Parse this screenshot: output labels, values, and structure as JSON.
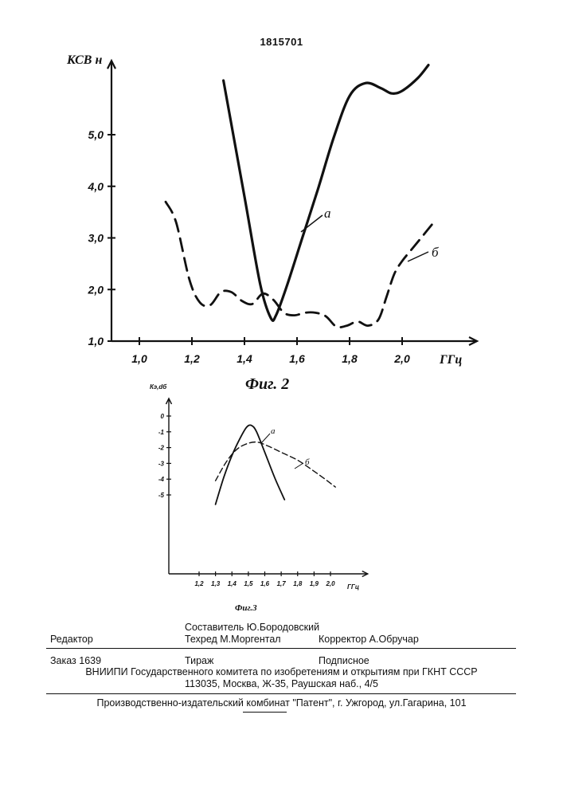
{
  "patent_number": "1815701",
  "chart_data": [
    {
      "type": "line",
      "caption": "Фиг. 2",
      "ylabel": "КСВ н",
      "xlabel": "ГГц",
      "xlim": [
        0.92,
        2.2
      ],
      "ylim": [
        1.0,
        6.0
      ],
      "x_ticks": [
        "1,0",
        "1,2",
        "1,4",
        "1,6",
        "1,8",
        "2,0"
      ],
      "y_ticks": [
        "1,0",
        "2,0",
        "3,0",
        "4,0",
        "5,0"
      ],
      "series": [
        {
          "name": "а",
          "style": "solid",
          "points": [
            [
              1.32,
              6.05
            ],
            [
              1.4,
              3.8
            ],
            [
              1.46,
              2.1
            ],
            [
              1.5,
              1.45
            ],
            [
              1.52,
              1.5
            ],
            [
              1.56,
              2.05
            ],
            [
              1.62,
              3.0
            ],
            [
              1.68,
              3.95
            ],
            [
              1.74,
              4.95
            ],
            [
              1.8,
              5.75
            ],
            [
              1.86,
              6.0
            ],
            [
              1.92,
              5.9
            ],
            [
              1.96,
              5.8
            ],
            [
              2.0,
              5.85
            ],
            [
              2.06,
              6.1
            ],
            [
              2.1,
              6.35
            ]
          ]
        },
        {
          "name": "б",
          "style": "dashed",
          "points": [
            [
              1.1,
              3.7
            ],
            [
              1.14,
              3.3
            ],
            [
              1.19,
              2.2
            ],
            [
              1.23,
              1.75
            ],
            [
              1.27,
              1.7
            ],
            [
              1.31,
              1.95
            ],
            [
              1.35,
              1.95
            ],
            [
              1.39,
              1.78
            ],
            [
              1.43,
              1.72
            ],
            [
              1.47,
              1.92
            ],
            [
              1.51,
              1.8
            ],
            [
              1.55,
              1.55
            ],
            [
              1.59,
              1.5
            ],
            [
              1.63,
              1.55
            ],
            [
              1.67,
              1.55
            ],
            [
              1.71,
              1.48
            ],
            [
              1.75,
              1.28
            ],
            [
              1.79,
              1.3
            ],
            [
              1.83,
              1.38
            ],
            [
              1.87,
              1.3
            ],
            [
              1.91,
              1.42
            ],
            [
              1.94,
              1.85
            ],
            [
              1.97,
              2.3
            ],
            [
              2.0,
              2.55
            ],
            [
              2.04,
              2.8
            ],
            [
              2.08,
              3.05
            ],
            [
              2.12,
              3.3
            ]
          ]
        }
      ]
    },
    {
      "type": "line",
      "caption": "Фиг.3",
      "ylabel": "Кэ,dб",
      "xlabel": "ГГц",
      "xlim": [
        1.07,
        2.12
      ],
      "ylim": [
        -10,
        0
      ],
      "x_ticks": [
        "1,2",
        "1,3",
        "1,4",
        "1,5",
        "1,6",
        "1,7",
        "1,8",
        "1,9",
        "2,0"
      ],
      "y_ticks": [
        "0",
        "-1",
        "-2",
        "-3",
        "-4",
        "-5"
      ],
      "series": [
        {
          "name": "а",
          "style": "solid",
          "points": [
            [
              1.3,
              -5.6
            ],
            [
              1.35,
              -3.9
            ],
            [
              1.4,
              -2.5
            ],
            [
              1.45,
              -1.4
            ],
            [
              1.49,
              -0.7
            ],
            [
              1.52,
              -0.6
            ],
            [
              1.55,
              -1.0
            ],
            [
              1.6,
              -2.3
            ],
            [
              1.66,
              -3.9
            ],
            [
              1.72,
              -5.3
            ]
          ]
        },
        {
          "name": "б",
          "style": "dashed",
          "points": [
            [
              1.3,
              -4.1
            ],
            [
              1.36,
              -3.0
            ],
            [
              1.42,
              -2.2
            ],
            [
              1.48,
              -1.8
            ],
            [
              1.55,
              -1.65
            ],
            [
              1.62,
              -1.9
            ],
            [
              1.7,
              -2.3
            ],
            [
              1.8,
              -2.8
            ],
            [
              1.9,
              -3.5
            ],
            [
              1.98,
              -4.1
            ],
            [
              2.03,
              -4.5
            ]
          ]
        }
      ]
    }
  ],
  "imprint": {
    "compiler": "Составитель  Ю.Бородовский",
    "editor": "Редактор",
    "techred": "Техред М.Моргентал",
    "corrector": "Корректор  А.Обручар",
    "order": "Заказ  1639",
    "circulation": "Тираж",
    "subscription": "Подписное",
    "institute": "ВНИИПИ Государственного комитета по изобретениям и открытиям при ГКНТ СССР",
    "address": "113035, Москва, Ж-35, Раушская наб., 4/5",
    "publisher": "Производственно-издательский комбинат \"Патент\", г. Ужгород, ул.Гагарина, 101"
  }
}
